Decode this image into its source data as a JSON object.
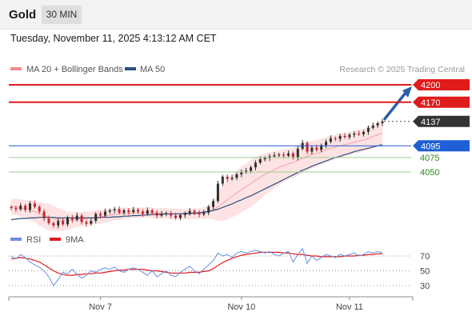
{
  "header": {
    "title": "Gold",
    "timeframe": "30 MIN"
  },
  "datetime": "Tuesday, November 11, 2025 4:13:12 AM CET",
  "credit": "Research © 2025 Trading Central",
  "legend": {
    "price": [
      {
        "label": "MA 20 + Bollinger Bands",
        "color": "#f08a8a"
      },
      {
        "label": "MA 50",
        "color": "#2b4f80"
      }
    ],
    "rsi": [
      {
        "label": "RSI",
        "color": "#6b8fe0"
      },
      {
        "label": "9MA",
        "color": "#e01b1b"
      }
    ]
  },
  "chart_data": {
    "type": "candlestick",
    "x_ticks": [
      "Nov 7",
      "Nov 10",
      "Nov 11"
    ],
    "price_range": [
      3950,
      4220
    ],
    "levels": [
      {
        "value": 4200,
        "label": "4200",
        "color": "#e01b1b",
        "style": "box"
      },
      {
        "value": 4170,
        "label": "4170",
        "color": "#e01b1b",
        "style": "box"
      },
      {
        "value": 4137,
        "label": "4137",
        "color": "#333333",
        "style": "box"
      },
      {
        "value": 4095,
        "label": "4095",
        "color": "#1e5fd6",
        "style": "box"
      },
      {
        "value": 4075,
        "label": "4075",
        "color": "#2f8a1e",
        "style": "text"
      },
      {
        "value": 4050,
        "label": "4050",
        "color": "#2f8a1e",
        "style": "text"
      }
    ],
    "price_path": [
      3988,
      3986,
      3992,
      3985,
      3996,
      3990,
      3982,
      3970,
      3962,
      3958,
      3966,
      3960,
      3972,
      3968,
      3975,
      3964,
      3961,
      3966,
      3978,
      3975,
      3982,
      3984,
      3986,
      3980,
      3984,
      3981,
      3985,
      3982,
      3978,
      3984,
      3980,
      3975,
      3978,
      3979,
      3975,
      3971,
      3976,
      3978,
      3983,
      3980,
      3977,
      3980,
      3990,
      4000,
      4030,
      4042,
      4038,
      4040,
      4046,
      4050,
      4052,
      4058,
      4066,
      4072,
      4074,
      4077,
      4079,
      4080,
      4078,
      4082,
      4075,
      4090,
      4100,
      4085,
      4092,
      4088,
      4096,
      4102,
      4108,
      4107,
      4112,
      4110,
      4114,
      4116,
      4115,
      4119,
      4126,
      4130,
      4134,
      4137
    ],
    "ma20": [
      3990,
      3990,
      3988,
      3986,
      3984,
      3982,
      3978,
      3975,
      3972,
      3970,
      3968,
      3967,
      3966,
      3967,
      3968,
      3969,
      3970,
      3971,
      3972,
      3973,
      3974,
      3976,
      3977,
      3978,
      3979,
      3979,
      3980,
      3980,
      3980,
      3980,
      3980,
      3979,
      3979,
      3979,
      3978,
      3978,
      3978,
      3977,
      3978,
      3978,
      3978,
      3979,
      3982,
      3985,
      3990,
      3996,
      4002,
      4008,
      4014,
      4020,
      4025,
      4030,
      4036,
      4041,
      4046,
      4050,
      4054,
      4058,
      4061,
      4064,
      4066,
      4070,
      4074,
      4077,
      4080,
      4082,
      4085,
      4088,
      4091,
      4093,
      4095,
      4097,
      4099,
      4101,
      4103,
      4105,
      4108,
      4111,
      4114,
      4117
    ],
    "bb_width": [
      14,
      14,
      15,
      16,
      17,
      18,
      20,
      22,
      23,
      22,
      20,
      18,
      16,
      14,
      13,
      12,
      12,
      12,
      12,
      12,
      11,
      11,
      10,
      10,
      10,
      9,
      9,
      9,
      9,
      9,
      9,
      9,
      9,
      9,
      9,
      9,
      9,
      9,
      9,
      9,
      9,
      10,
      12,
      16,
      24,
      30,
      34,
      36,
      38,
      40,
      40,
      40,
      40,
      38,
      36,
      34,
      32,
      30,
      28,
      26,
      26,
      26,
      26,
      25,
      24,
      23,
      22,
      22,
      22,
      21,
      21,
      20,
      20,
      20,
      20,
      20,
      20,
      20,
      20,
      20
    ],
    "ma50": [
      3968,
      3969,
      3970,
      3970,
      3971,
      3971,
      3972,
      3972,
      3972,
      3972,
      3971,
      3971,
      3971,
      3971,
      3971,
      3971,
      3971,
      3971,
      3971,
      3972,
      3972,
      3972,
      3973,
      3973,
      3974,
      3974,
      3975,
      3975,
      3976,
      3976,
      3977,
      3977,
      3977,
      3978,
      3978,
      3978,
      3978,
      3979,
      3979,
      3979,
      3980,
      3981,
      3982,
      3984,
      3986,
      3989,
      3992,
      3995,
      3999,
      4002,
      4006,
      4009,
      4013,
      4017,
      4021,
      4025,
      4029,
      4033,
      4037,
      4041,
      4045,
      4049,
      4053,
      4056,
      4060,
      4063,
      4066,
      4069,
      4072,
      4075,
      4077,
      4080,
      4082,
      4085,
      4087,
      4089,
      4091,
      4093,
      4095,
      4097
    ],
    "rsi": {
      "levels": [
        70,
        50,
        30
      ],
      "range": [
        20,
        80
      ],
      "rsi_values": [
        70,
        66,
        72,
        68,
        62,
        58,
        55,
        50,
        42,
        30,
        38,
        48,
        46,
        52,
        45,
        40,
        44,
        50,
        48,
        52,
        54,
        52,
        55,
        50,
        48,
        52,
        54,
        52,
        48,
        44,
        50,
        42,
        46,
        50,
        44,
        42,
        48,
        52,
        56,
        50,
        46,
        52,
        58,
        64,
        74,
        70,
        72,
        68,
        74,
        76,
        74,
        76,
        78,
        76,
        74,
        76,
        72,
        70,
        74,
        76,
        62,
        72,
        80,
        60,
        70,
        64,
        68,
        72,
        70,
        68,
        72,
        70,
        72,
        74,
        70,
        72,
        76,
        74,
        76,
        74
      ],
      "ma9_values": [
        66,
        67,
        68,
        67,
        66,
        64,
        62,
        58,
        54,
        50,
        47,
        45,
        44,
        44,
        45,
        45,
        46,
        46,
        47,
        47,
        48,
        49,
        50,
        51,
        51,
        52,
        52,
        52,
        52,
        51,
        50,
        50,
        49,
        48,
        47,
        47,
        47,
        47,
        48,
        48,
        48,
        49,
        50,
        53,
        57,
        61,
        64,
        67,
        69,
        71,
        72,
        73,
        74,
        75,
        75,
        75,
        75,
        75,
        74,
        74,
        73,
        72,
        72,
        71,
        70,
        70,
        69,
        69,
        69,
        69,
        69,
        70,
        70,
        70,
        71,
        71,
        72,
        72,
        73,
        73
      ]
    }
  }
}
